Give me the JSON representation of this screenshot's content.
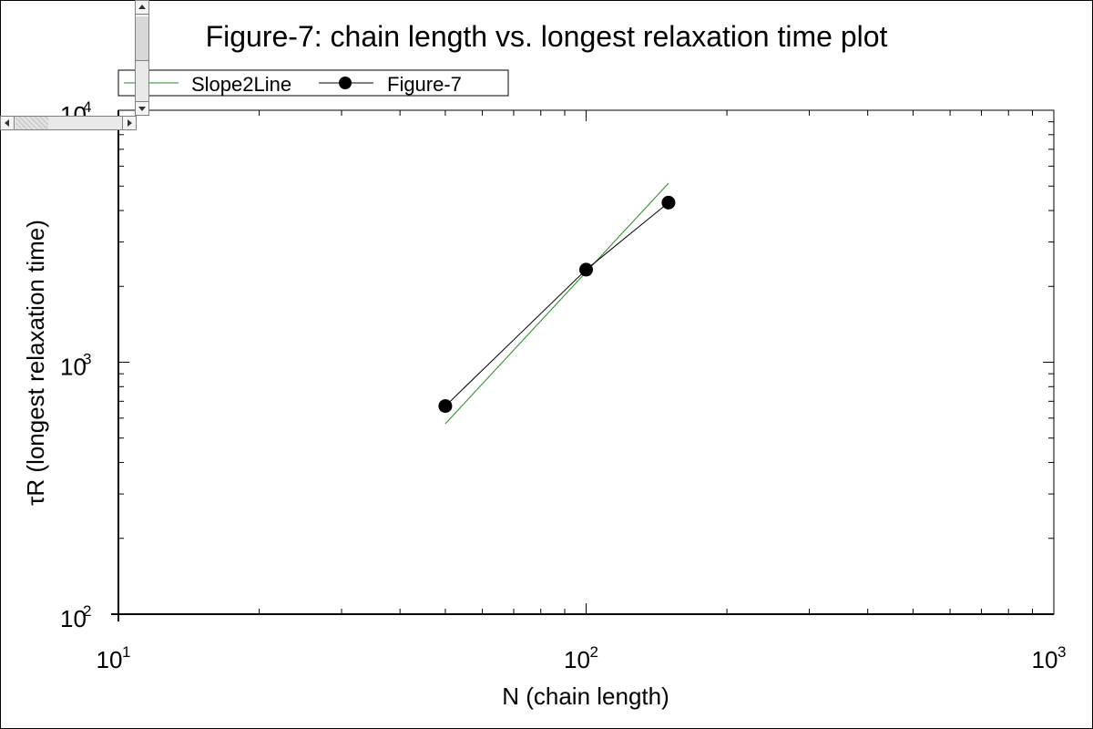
{
  "chart_data": {
    "type": "line",
    "title": "Figure-7: chain length vs. longest relaxation time plot",
    "xlabel": "N (chain length)",
    "ylabel": "τR (longest relaxation time)",
    "xscale": "log",
    "yscale": "log",
    "xlim": [
      10,
      1000
    ],
    "ylim": [
      100,
      10000
    ],
    "xticks": [
      {
        "base": "10",
        "exp": "1",
        "value": 10
      },
      {
        "base": "10",
        "exp": "2",
        "value": 100
      },
      {
        "base": "10",
        "exp": "3",
        "value": 1000
      }
    ],
    "yticks": [
      {
        "base": "10",
        "exp": "2",
        "value": 100
      },
      {
        "base": "10",
        "exp": "3",
        "value": 1000
      },
      {
        "base": "10",
        "exp": "4",
        "value": 10000
      }
    ],
    "legend_position": "top-left",
    "grid": false,
    "series": [
      {
        "name": "Slope2Line",
        "color": "#228b22",
        "marker": "none",
        "x": [
          50,
          150
        ],
        "y": [
          570,
          5130
        ]
      },
      {
        "name": "Figure-7",
        "color": "#000000",
        "marker": "circle",
        "x": [
          50,
          100,
          150
        ],
        "y": [
          670,
          2330,
          4300
        ]
      }
    ]
  }
}
